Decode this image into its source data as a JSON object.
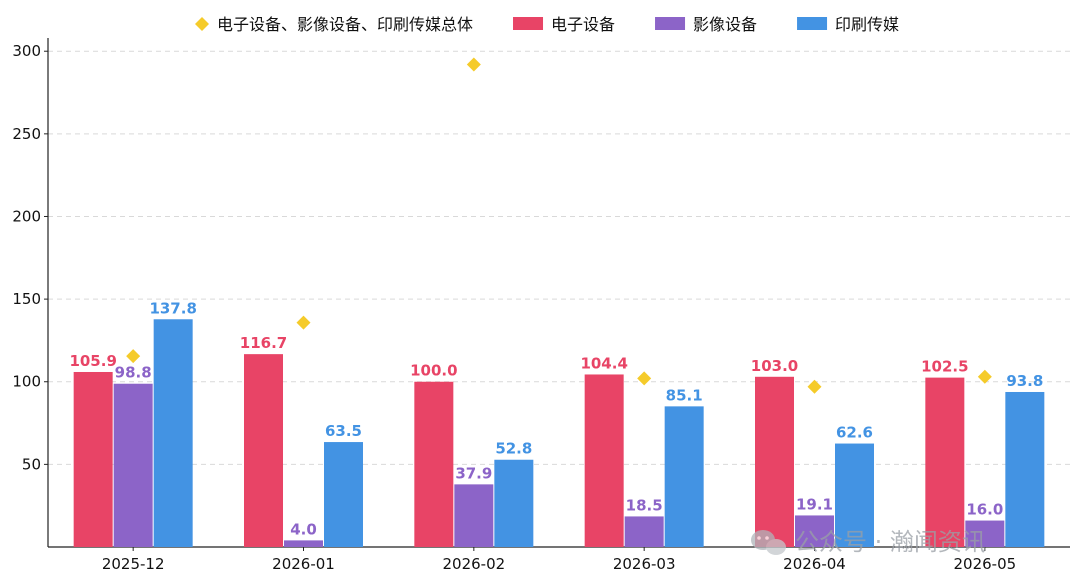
{
  "chart_data": {
    "type": "bar",
    "categories": [
      "2025-12",
      "2026-01",
      "2026-02",
      "2026-03",
      "2026-04",
      "2026-05"
    ],
    "series": [
      {
        "name": "电子设备",
        "kind": "bar",
        "color": "#E84466",
        "values": [
          105.9,
          116.7,
          100.0,
          104.4,
          103.0,
          102.5
        ]
      },
      {
        "name": "影像设备",
        "kind": "bar",
        "color": "#8C64C8",
        "values": [
          98.8,
          4.0,
          37.9,
          18.5,
          19.1,
          16.0
        ]
      },
      {
        "name": "印刷传媒",
        "kind": "bar",
        "color": "#4393E3",
        "values": [
          137.8,
          63.5,
          52.8,
          85.1,
          62.6,
          93.8
        ]
      },
      {
        "name": "电子设备、影像设备、印刷传媒总体",
        "kind": "marker",
        "marker": "diamond",
        "color": "#F5CB2A",
        "values": [
          115.5,
          135.8,
          292.0,
          102.0,
          97.0,
          103.0
        ]
      }
    ],
    "y_ticks": [
      50,
      100,
      150,
      200,
      250,
      300
    ],
    "ylim": [
      0,
      308
    ],
    "grid": "horizontal dashed",
    "legend": "top"
  },
  "watermark": {
    "text": "公众号 · 瀚闻资讯",
    "icon": "wechat-icon"
  }
}
